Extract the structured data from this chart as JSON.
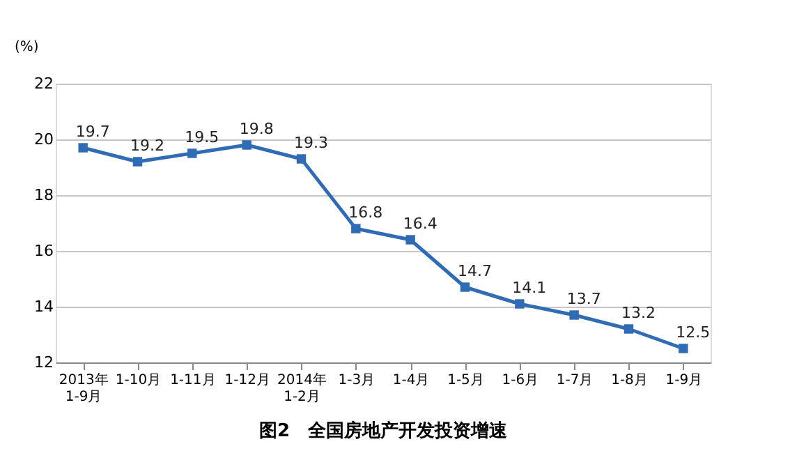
{
  "chart_data": {
    "type": "line",
    "title": "图2　全国房地产开发投资增速",
    "ylabel": "(%)",
    "categories": [
      "2013年\n1-9月",
      "1-10月",
      "1-11月",
      "1-12月",
      "2014年\n1-2月",
      "1-3月",
      "1-4月",
      "1-5月",
      "1-6月",
      "1-7月",
      "1-8月",
      "1-9月"
    ],
    "series": [
      {
        "color": "#2f6cb5",
        "values": [
          19.7,
          19.2,
          19.5,
          19.8,
          19.3,
          16.8,
          16.4,
          14.7,
          14.1,
          13.7,
          13.2,
          12.5
        ]
      }
    ],
    "ylim": [
      12,
      22
    ],
    "yticks": [
      12,
      14,
      16,
      18,
      20,
      22
    ],
    "grid": "y",
    "marker": "square",
    "line_style": "solid",
    "data_labels": true
  }
}
